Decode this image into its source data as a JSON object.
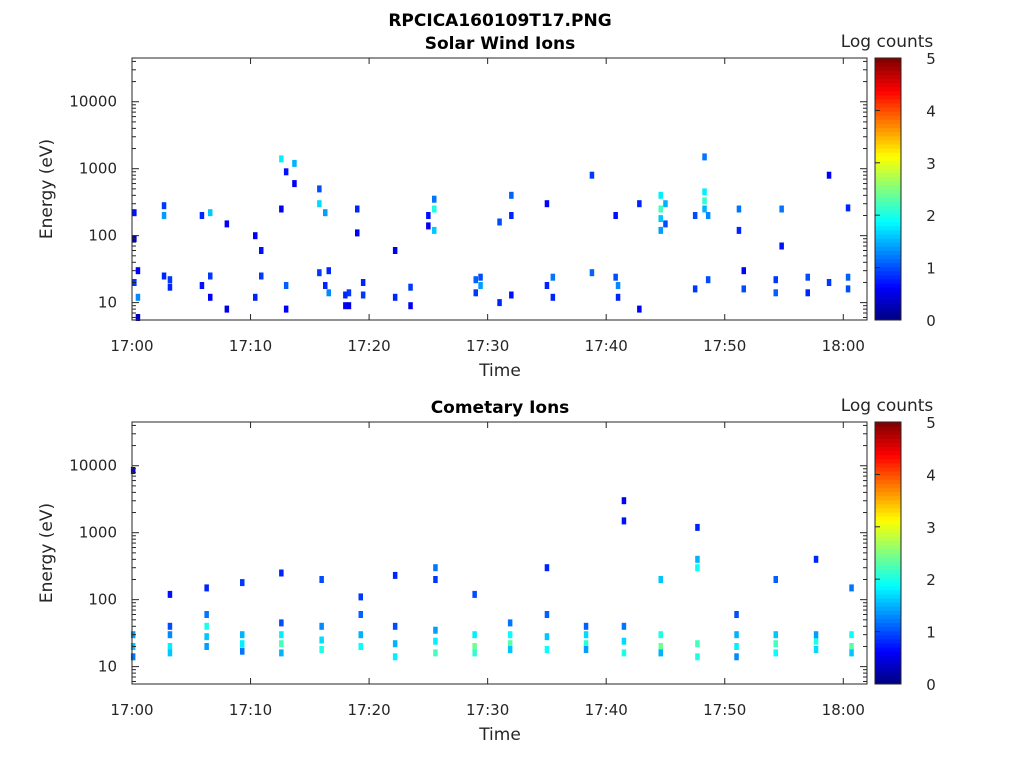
{
  "figure_title": "RPCICA160109T17.PNG",
  "colorbar": {
    "label": "Log counts",
    "range": [
      0,
      5
    ],
    "ticks": [
      "0",
      "1",
      "2",
      "3",
      "4",
      "5"
    ],
    "colormap": "jet"
  },
  "chart_data": [
    {
      "type": "heatmap",
      "title": "Solar Wind Ions",
      "xlabel": "Time",
      "ylabel": "Energy (eV)",
      "xlim": [
        "17:00",
        "18:02"
      ],
      "xticks": [
        "17:00",
        "17:10",
        "17:20",
        "17:30",
        "17:40",
        "17:50",
        "18:00"
      ],
      "yscale": "log",
      "ylim": [
        5.5,
        45000
      ],
      "yticks": [
        "10",
        "100",
        "1000",
        "10000"
      ],
      "zlim": [
        0,
        5
      ],
      "columns": [
        {
          "t": 0.2,
          "cells": [
            [
              20,
              0.9
            ],
            [
              220,
              0.7
            ],
            [
              90,
              0.4
            ]
          ]
        },
        {
          "t": 0.5,
          "cells": [
            [
              12,
              1.3
            ],
            [
              30,
              0.6
            ],
            [
              6,
              0.3
            ]
          ]
        },
        {
          "t": 2.7,
          "cells": [
            [
              25,
              0.8
            ],
            [
              200,
              1.4
            ],
            [
              280,
              0.9
            ]
          ]
        },
        {
          "t": 3.2,
          "cells": [
            [
              22,
              0.9
            ],
            [
              17,
              0.8
            ]
          ]
        },
        {
          "t": 5.9,
          "cells": [
            [
              18,
              0.7
            ],
            [
              200,
              0.8
            ]
          ]
        },
        {
          "t": 6.6,
          "cells": [
            [
              25,
              0.9
            ],
            [
              220,
              1.6
            ],
            [
              12,
              0.6
            ]
          ]
        },
        {
          "t": 8.0,
          "cells": [
            [
              8,
              0.5
            ],
            [
              150,
              0.6
            ]
          ]
        },
        {
          "t": 10.4,
          "cells": [
            [
              12,
              0.8
            ],
            [
              100,
              0.6
            ]
          ]
        },
        {
          "t": 10.9,
          "cells": [
            [
              25,
              0.9
            ],
            [
              60,
              0.7
            ]
          ]
        },
        {
          "t": 12.6,
          "cells": [
            [
              1400,
              1.8
            ],
            [
              250,
              0.6
            ]
          ]
        },
        {
          "t": 13.0,
          "cells": [
            [
              18,
              1.1
            ],
            [
              900,
              0.7
            ],
            [
              8,
              0.6
            ]
          ]
        },
        {
          "t": 13.7,
          "cells": [
            [
              1200,
              1.5
            ],
            [
              600,
              0.6
            ]
          ]
        },
        {
          "t": 15.8,
          "cells": [
            [
              300,
              1.7
            ],
            [
              500,
              1.0
            ],
            [
              28,
              0.9
            ]
          ]
        },
        {
          "t": 16.3,
          "cells": [
            [
              220,
              1.4
            ],
            [
              18,
              0.8
            ]
          ]
        },
        {
          "t": 16.6,
          "cells": [
            [
              14,
              1.3
            ],
            [
              30,
              0.8
            ]
          ]
        },
        {
          "t": 18.0,
          "cells": [
            [
              9,
              0.6
            ],
            [
              13,
              0.8
            ]
          ]
        },
        {
          "t": 18.3,
          "cells": [
            [
              14,
              0.9
            ],
            [
              9,
              0.5
            ]
          ]
        },
        {
          "t": 19.0,
          "cells": [
            [
              250,
              0.8
            ],
            [
              110,
              0.6
            ]
          ]
        },
        {
          "t": 19.5,
          "cells": [
            [
              13,
              0.9
            ],
            [
              20,
              0.8
            ]
          ]
        },
        {
          "t": 22.2,
          "cells": [
            [
              12,
              0.8
            ],
            [
              60,
              0.5
            ]
          ]
        },
        {
          "t": 23.5,
          "cells": [
            [
              17,
              0.9
            ],
            [
              9,
              0.6
            ]
          ]
        },
        {
          "t": 25.0,
          "cells": [
            [
              200,
              0.7
            ],
            [
              140,
              0.6
            ]
          ]
        },
        {
          "t": 25.5,
          "cells": [
            [
              250,
              2.0
            ],
            [
              120,
              1.6
            ],
            [
              350,
              1.2
            ]
          ]
        },
        {
          "t": 29.0,
          "cells": [
            [
              22,
              1.1
            ],
            [
              14,
              0.9
            ]
          ]
        },
        {
          "t": 29.4,
          "cells": [
            [
              18,
              1.4
            ],
            [
              24,
              1.0
            ]
          ]
        },
        {
          "t": 31.0,
          "cells": [
            [
              160,
              1.0
            ],
            [
              10,
              0.8
            ]
          ]
        },
        {
          "t": 32.0,
          "cells": [
            [
              400,
              1.1
            ],
            [
              200,
              0.8
            ],
            [
              13,
              0.7
            ]
          ]
        },
        {
          "t": 35.0,
          "cells": [
            [
              18,
              0.8
            ],
            [
              300,
              0.6
            ]
          ]
        },
        {
          "t": 35.5,
          "cells": [
            [
              24,
              1.2
            ],
            [
              12,
              0.8
            ]
          ]
        },
        {
          "t": 38.8,
          "cells": [
            [
              28,
              1.1
            ],
            [
              800,
              0.9
            ]
          ]
        },
        {
          "t": 40.8,
          "cells": [
            [
              24,
              1.0
            ],
            [
              200,
              0.7
            ]
          ]
        },
        {
          "t": 41.0,
          "cells": [
            [
              18,
              1.3
            ],
            [
              12,
              0.8
            ]
          ]
        },
        {
          "t": 42.8,
          "cells": [
            [
              300,
              0.8
            ],
            [
              8,
              0.6
            ]
          ]
        },
        {
          "t": 44.6,
          "cells": [
            [
              250,
              2.2
            ],
            [
              400,
              1.8
            ],
            [
              180,
              1.6
            ],
            [
              120,
              1.4
            ]
          ]
        },
        {
          "t": 45.0,
          "cells": [
            [
              300,
              1.5
            ],
            [
              150,
              1.0
            ]
          ]
        },
        {
          "t": 47.5,
          "cells": [
            [
              200,
              1.0
            ],
            [
              16,
              0.9
            ]
          ]
        },
        {
          "t": 48.3,
          "cells": [
            [
              330,
              2.1
            ],
            [
              450,
              1.8
            ],
            [
              250,
              1.5
            ],
            [
              1500,
              1.2
            ]
          ]
        },
        {
          "t": 48.6,
          "cells": [
            [
              200,
              1.3
            ],
            [
              22,
              1.0
            ]
          ]
        },
        {
          "t": 51.2,
          "cells": [
            [
              250,
              1.2
            ],
            [
              120,
              0.8
            ]
          ]
        },
        {
          "t": 51.6,
          "cells": [
            [
              16,
              1.0
            ],
            [
              30,
              0.6
            ]
          ]
        },
        {
          "t": 54.3,
          "cells": [
            [
              14,
              1.1
            ],
            [
              22,
              0.9
            ]
          ]
        },
        {
          "t": 54.8,
          "cells": [
            [
              250,
              1.2
            ],
            [
              70,
              0.7
            ]
          ]
        },
        {
          "t": 57.0,
          "cells": [
            [
              24,
              1.0
            ],
            [
              14,
              0.8
            ]
          ]
        },
        {
          "t": 58.8,
          "cells": [
            [
              20,
              0.9
            ],
            [
              800,
              0.6
            ]
          ]
        },
        {
          "t": 60.4,
          "cells": [
            [
              24,
              1.1
            ],
            [
              16,
              1.0
            ],
            [
              260,
              0.8
            ]
          ]
        }
      ]
    },
    {
      "type": "heatmap",
      "title": "Cometary Ions",
      "xlabel": "Time",
      "ylabel": "Energy (eV)",
      "xlim": [
        "17:00",
        "18:02"
      ],
      "xticks": [
        "17:00",
        "17:10",
        "17:20",
        "17:30",
        "17:40",
        "17:50",
        "18:00"
      ],
      "yscale": "log",
      "ylim": [
        5.5,
        45000
      ],
      "yticks": [
        "10",
        "100",
        "1000",
        "10000"
      ],
      "zlim": [
        0,
        5
      ],
      "columns": [
        {
          "t": 0.1,
          "cells": [
            [
              30,
              1.4
            ],
            [
              20,
              1.6
            ],
            [
              14,
              1.2
            ],
            [
              8500,
              0.6
            ]
          ]
        },
        {
          "t": 3.2,
          "cells": [
            [
              20,
              1.8
            ],
            [
              16,
              1.6
            ],
            [
              30,
              1.3
            ],
            [
              40,
              1.0
            ],
            [
              120,
              0.7
            ]
          ]
        },
        {
          "t": 6.3,
          "cells": [
            [
              40,
              2.0
            ],
            [
              28,
              1.6
            ],
            [
              20,
              1.4
            ],
            [
              60,
              1.2
            ],
            [
              150,
              0.8
            ]
          ]
        },
        {
          "t": 9.3,
          "cells": [
            [
              22,
              1.8
            ],
            [
              30,
              1.5
            ],
            [
              17,
              1.2
            ],
            [
              180,
              0.9
            ]
          ]
        },
        {
          "t": 12.6,
          "cells": [
            [
              22,
              2.2
            ],
            [
              30,
              1.8
            ],
            [
              16,
              1.5
            ],
            [
              45,
              1.0
            ],
            [
              250,
              0.8
            ]
          ]
        },
        {
          "t": 16.0,
          "cells": [
            [
              18,
              2.0
            ],
            [
              25,
              1.7
            ],
            [
              40,
              1.3
            ],
            [
              200,
              1.0
            ]
          ]
        },
        {
          "t": 19.3,
          "cells": [
            [
              20,
              1.9
            ],
            [
              30,
              1.5
            ],
            [
              60,
              1.1
            ],
            [
              110,
              0.9
            ]
          ]
        },
        {
          "t": 22.2,
          "cells": [
            [
              14,
              1.8
            ],
            [
              22,
              1.5
            ],
            [
              40,
              1.0
            ],
            [
              230,
              0.8
            ]
          ]
        },
        {
          "t": 25.6,
          "cells": [
            [
              16,
              2.2
            ],
            [
              24,
              1.8
            ],
            [
              35,
              1.4
            ],
            [
              300,
              1.2
            ],
            [
              200,
              0.9
            ]
          ]
        },
        {
          "t": 28.9,
          "cells": [
            [
              20,
              2.4
            ],
            [
              16,
              2.1
            ],
            [
              30,
              1.8
            ],
            [
              120,
              1.0
            ]
          ]
        },
        {
          "t": 31.9,
          "cells": [
            [
              22,
              2.3
            ],
            [
              30,
              1.9
            ],
            [
              18,
              1.6
            ],
            [
              45,
              1.2
            ]
          ]
        },
        {
          "t": 35.0,
          "cells": [
            [
              18,
              1.9
            ],
            [
              28,
              1.6
            ],
            [
              60,
              1.1
            ],
            [
              300,
              0.8
            ]
          ]
        },
        {
          "t": 38.3,
          "cells": [
            [
              22,
              2.1
            ],
            [
              30,
              1.7
            ],
            [
              18,
              1.4
            ],
            [
              40,
              1.1
            ]
          ]
        },
        {
          "t": 41.5,
          "cells": [
            [
              16,
              2.0
            ],
            [
              24,
              1.7
            ],
            [
              40,
              1.2
            ],
            [
              1500,
              0.7
            ],
            [
              3000,
              0.6
            ]
          ]
        },
        {
          "t": 44.6,
          "cells": [
            [
              20,
              2.4
            ],
            [
              30,
              2.0
            ],
            [
              200,
              1.6
            ],
            [
              16,
              1.5
            ]
          ]
        },
        {
          "t": 47.7,
          "cells": [
            [
              14,
              2.0
            ],
            [
              22,
              2.2
            ],
            [
              300,
              1.9
            ],
            [
              400,
              1.5
            ],
            [
              1200,
              0.8
            ]
          ]
        },
        {
          "t": 51.0,
          "cells": [
            [
              20,
              1.8
            ],
            [
              30,
              1.5
            ],
            [
              14,
              1.3
            ],
            [
              60,
              1.0
            ]
          ]
        },
        {
          "t": 54.3,
          "cells": [
            [
              22,
              2.2
            ],
            [
              16,
              1.9
            ],
            [
              30,
              1.6
            ],
            [
              200,
              1.1
            ]
          ]
        },
        {
          "t": 57.7,
          "cells": [
            [
              24,
              2.0
            ],
            [
              18,
              1.7
            ],
            [
              30,
              1.4
            ],
            [
              400,
              0.8
            ]
          ]
        },
        {
          "t": 60.7,
          "cells": [
            [
              20,
              2.3
            ],
            [
              30,
              1.9
            ],
            [
              16,
              1.6
            ],
            [
              150,
              1.2
            ]
          ]
        }
      ]
    }
  ]
}
